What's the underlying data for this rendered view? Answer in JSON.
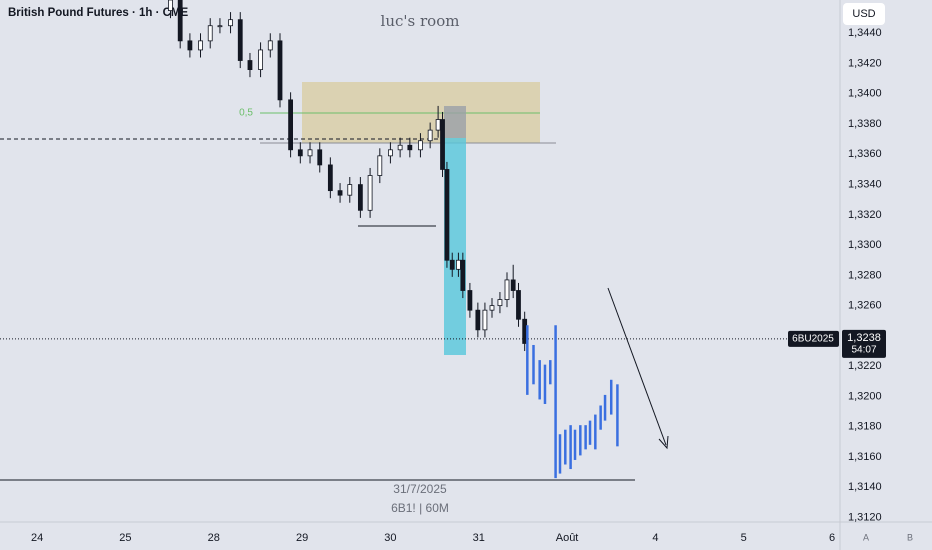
{
  "header": {
    "symbol": "British Pound Futures · 1h · CME",
    "watermark": "luc's room",
    "currency": "USD",
    "fib_label": "0,5",
    "date_label": "31/7/2025",
    "series_label": "6B1! | 60M",
    "scale_a": "A",
    "scale_b": "B"
  },
  "chart_data": {
    "type": "candlestick",
    "xlim": [
      -0.42,
      9.09
    ],
    "xticks": [
      {
        "value": 0,
        "label": "24"
      },
      {
        "value": 1,
        "label": "25"
      },
      {
        "value": 2,
        "label": "28"
      },
      {
        "value": 3,
        "label": "29"
      },
      {
        "value": 4,
        "label": "30"
      },
      {
        "value": 5,
        "label": "31"
      },
      {
        "value": 6,
        "label": "Août"
      },
      {
        "value": 7,
        "label": "4"
      },
      {
        "value": 8,
        "label": "5"
      },
      {
        "value": 9,
        "label": "6"
      }
    ],
    "ylim": [
      1.3117,
      1.3462
    ],
    "yticks": [
      {
        "value": 1.312,
        "label": "1,3120"
      },
      {
        "value": 1.314,
        "label": "1,3140"
      },
      {
        "value": 1.316,
        "label": "1,3160"
      },
      {
        "value": 1.318,
        "label": "1,3180"
      },
      {
        "value": 1.32,
        "label": "1,3200"
      },
      {
        "value": 1.322,
        "label": "1,3220"
      },
      {
        "value": 1.324,
        "label": "1,3240"
      },
      {
        "value": 1.326,
        "label": "1,3260"
      },
      {
        "value": 1.328,
        "label": "1,3280"
      },
      {
        "value": 1.33,
        "label": "1,3300"
      },
      {
        "value": 1.332,
        "label": "1,3320"
      },
      {
        "value": 1.334,
        "label": "1,3340"
      },
      {
        "value": 1.336,
        "label": "1,3360"
      },
      {
        "value": 1.338,
        "label": "1,3380"
      },
      {
        "value": 1.34,
        "label": "1,3400"
      },
      {
        "value": 1.342,
        "label": "1,3420"
      },
      {
        "value": 1.344,
        "label": "1,3440"
      }
    ],
    "grid": false,
    "color": "#131722",
    "x": [
      1.51,
      1.62,
      1.73,
      1.85,
      1.96,
      2.07,
      2.19,
      2.3,
      2.41,
      2.53,
      2.64,
      2.75,
      2.87,
      2.98,
      3.09,
      3.2,
      3.32,
      3.43,
      3.54,
      3.66,
      3.77,
      3.88,
      4.0,
      4.11,
      4.22,
      4.34,
      4.45,
      4.54,
      4.59,
      4.64,
      4.7,
      4.77,
      4.82,
      4.9,
      4.99,
      5.07,
      5.15,
      5.24,
      5.32,
      5.39,
      5.45,
      5.52
    ],
    "open": [
      1.3455,
      1.3462,
      1.3435,
      1.3429,
      1.3435,
      1.3445,
      1.3445,
      1.3449,
      1.3422,
      1.3416,
      1.3429,
      1.3435,
      1.3396,
      1.3363,
      1.3359,
      1.3363,
      1.3353,
      1.3336,
      1.3333,
      1.334,
      1.3323,
      1.3346,
      1.3359,
      1.3363,
      1.3366,
      1.3363,
      1.3369,
      1.3376,
      1.3383,
      1.335,
      1.329,
      1.3284,
      1.329,
      1.327,
      1.3257,
      1.3244,
      1.3257,
      1.326,
      1.3264,
      1.3277,
      1.327,
      1.3251
    ],
    "high": [
      1.3467,
      1.3467,
      1.344,
      1.344,
      1.345,
      1.345,
      1.3454,
      1.3454,
      1.3427,
      1.3434,
      1.344,
      1.344,
      1.3401,
      1.3368,
      1.3368,
      1.3368,
      1.3358,
      1.3341,
      1.3345,
      1.3345,
      1.3351,
      1.3364,
      1.3368,
      1.3371,
      1.3371,
      1.3374,
      1.3381,
      1.3392,
      1.3388,
      1.3355,
      1.3295,
      1.3295,
      1.3295,
      1.3275,
      1.3262,
      1.3262,
      1.3265,
      1.3269,
      1.3282,
      1.3287,
      1.3275,
      1.3256
    ],
    "low": [
      1.345,
      1.343,
      1.3424,
      1.3424,
      1.343,
      1.344,
      1.344,
      1.3417,
      1.3411,
      1.3411,
      1.3424,
      1.3391,
      1.3358,
      1.3354,
      1.3354,
      1.3348,
      1.3331,
      1.3328,
      1.3328,
      1.3318,
      1.3318,
      1.3341,
      1.3354,
      1.3358,
      1.3358,
      1.3358,
      1.3364,
      1.3371,
      1.3345,
      1.3285,
      1.3279,
      1.3279,
      1.3265,
      1.3252,
      1.3239,
      1.3239,
      1.3252,
      1.3255,
      1.3259,
      1.3265,
      1.3246,
      1.323
    ],
    "close": [
      1.3462,
      1.3435,
      1.3429,
      1.3435,
      1.3445,
      1.3445,
      1.3449,
      1.3422,
      1.3416,
      1.3429,
      1.3435,
      1.3396,
      1.3363,
      1.3359,
      1.3363,
      1.3353,
      1.3336,
      1.3333,
      1.334,
      1.3323,
      1.3346,
      1.3359,
      1.3363,
      1.3366,
      1.3363,
      1.3369,
      1.3376,
      1.3383,
      1.335,
      1.329,
      1.3284,
      1.329,
      1.327,
      1.3257,
      1.3244,
      1.3257,
      1.326,
      1.3264,
      1.3277,
      1.327,
      1.3251,
      1.3235
    ],
    "projection": {
      "color": "#3a6fe0",
      "x": [
        5.55,
        5.62,
        5.69,
        5.75,
        5.81,
        5.87,
        5.92,
        5.98,
        6.04,
        6.09,
        6.15,
        6.21,
        6.26,
        6.32,
        6.38,
        6.43,
        6.5,
        6.57
      ],
      "high": [
        1.3247,
        1.3234,
        1.3224,
        1.3221,
        1.3224,
        1.3247,
        1.3175,
        1.3178,
        1.3181,
        1.3178,
        1.3181,
        1.3181,
        1.3184,
        1.3188,
        1.3194,
        1.3201,
        1.3211,
        1.3208
      ],
      "low": [
        1.3201,
        1.3208,
        1.3198,
        1.3195,
        1.3208,
        1.3146,
        1.3149,
        1.3155,
        1.3152,
        1.3158,
        1.3161,
        1.3165,
        1.3168,
        1.3165,
        1.3178,
        1.3184,
        1.3188,
        1.3167
      ]
    },
    "symbol_tag": "6BU2025",
    "last_price": {
      "value": 1.3238,
      "label": "1,3238"
    },
    "countdown": "54:07"
  }
}
